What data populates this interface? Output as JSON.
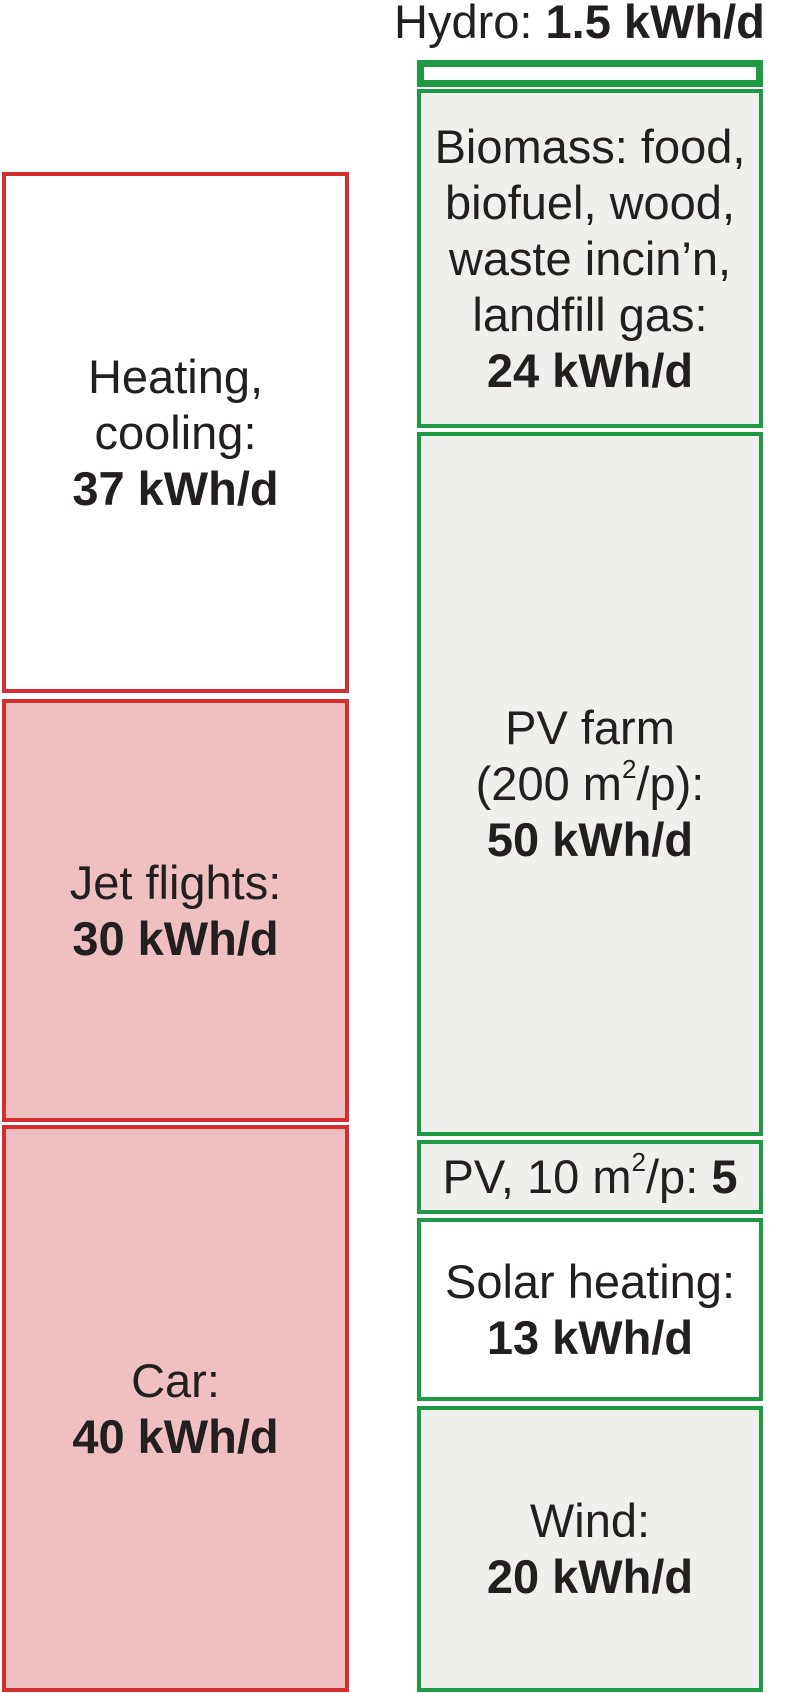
{
  "consumption": {
    "heating": {
      "label_line1": "Heating,",
      "label_line2": "cooling:",
      "value": "37 kWh/d"
    },
    "jet": {
      "label": "Jet flights:",
      "value": "30 kWh/d"
    },
    "car": {
      "label": "Car:",
      "value": "40 kWh/d"
    }
  },
  "production": {
    "hydro": {
      "label": "Hydro: ",
      "value": "1.5 kWh/d"
    },
    "biomass": {
      "line1": "Biomass: food,",
      "line2": "biofuel, wood,",
      "line3": "waste incin’n,",
      "line4": "landfill gas:",
      "value": "24 kWh/d"
    },
    "pv_farm": {
      "line1": "PV farm",
      "line2_pre": "(200 m",
      "line2_sup": "2",
      "line2_post": "/p):",
      "value": "50 kWh/d"
    },
    "pv_roof": {
      "pre": "PV, 10 m",
      "sup": "2",
      "post": "/p: ",
      "value": "5"
    },
    "solar_heating": {
      "label": "Solar heating:",
      "value": "13 kWh/d"
    },
    "wind": {
      "label": "Wind:",
      "value": "20 kWh/d"
    }
  },
  "colors": {
    "consumption_border": "#d62e2e",
    "consumption_fill": "#efbfc1",
    "production_border": "#1f9a44",
    "production_fill": "#eff0eb",
    "text": "#231f20"
  }
}
